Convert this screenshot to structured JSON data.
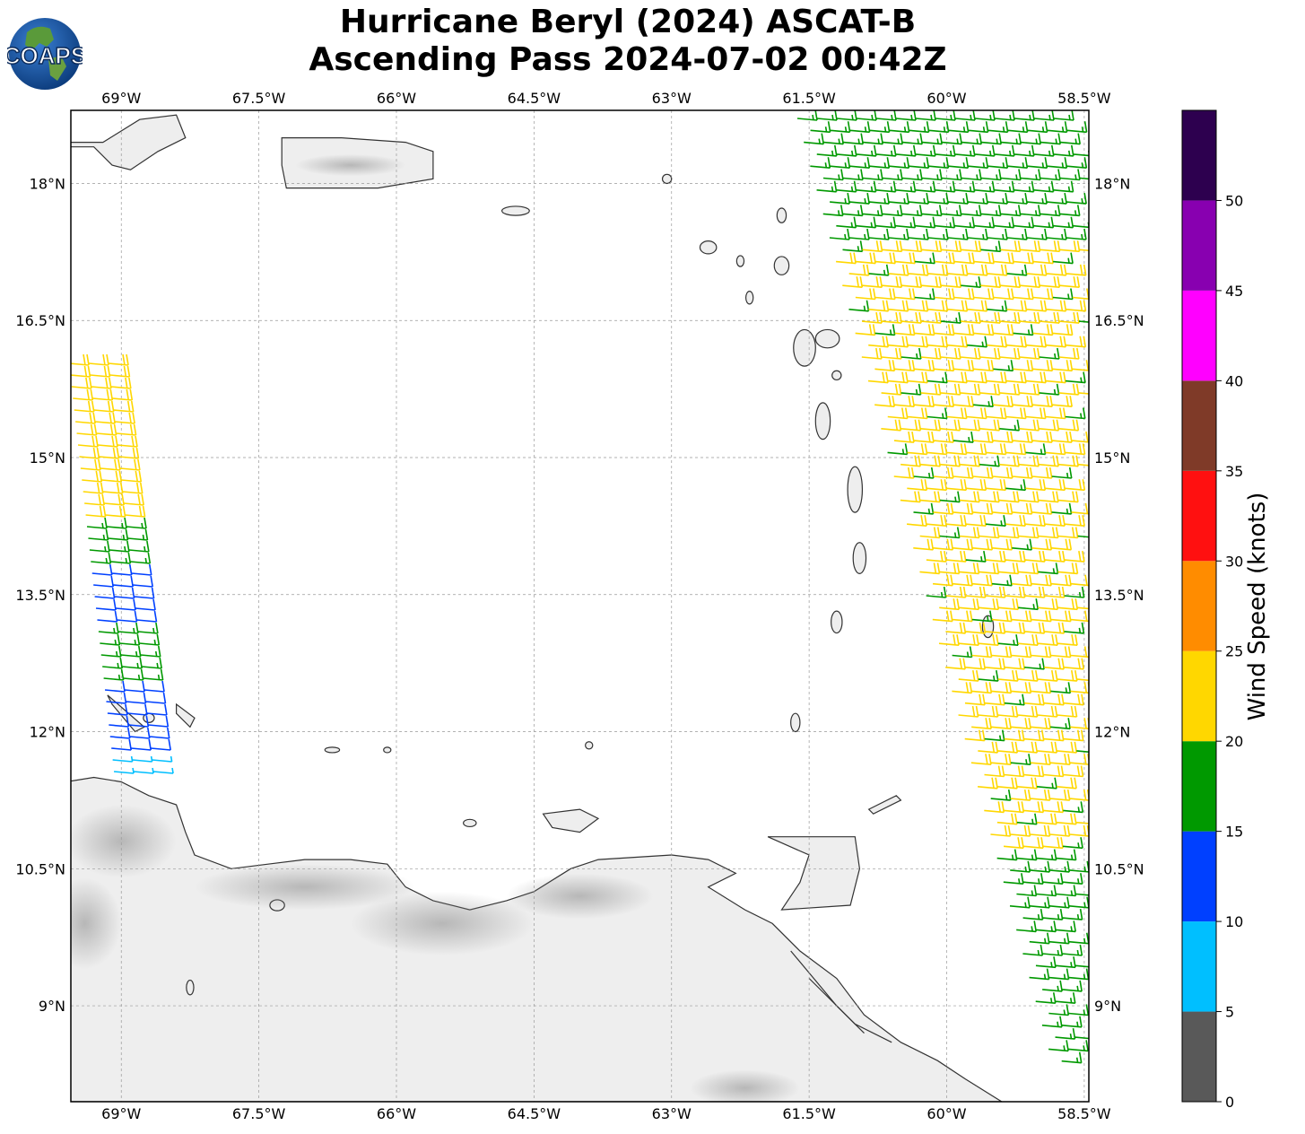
{
  "title": {
    "line1": "Hurricane Beryl (2024) ASCAT-B",
    "line2": "Ascending Pass 2024-07-02 00:42Z"
  },
  "logo": {
    "text": "COAPS",
    "icon": "globe-logo-icon"
  },
  "map": {
    "lon_range": [
      -69.55,
      -58.45
    ],
    "lat_range": [
      7.95,
      18.8
    ],
    "lon_ticks": [
      -69,
      -67.5,
      -66,
      -64.5,
      -63,
      -61.5,
      -60,
      -58.5
    ],
    "lon_labels": [
      "69°W",
      "67.5°W",
      "66°W",
      "64.5°W",
      "63°W",
      "61.5°W",
      "60°W",
      "58.5°W"
    ],
    "lat_ticks": [
      18,
      16.5,
      15,
      13.5,
      12,
      10.5,
      9
    ],
    "lat_labels": [
      "18°N",
      "16.5°N",
      "15°N",
      "13.5°N",
      "12°N",
      "10.5°N",
      "9°N"
    ],
    "gridlines": true,
    "land_color": "#eeeeee",
    "coast_color": "#333333"
  },
  "colorbar": {
    "label": "Wind Speed (knots)",
    "tick_values": [
      0,
      5,
      10,
      15,
      20,
      25,
      30,
      35,
      40,
      45,
      50
    ],
    "tick_labels": [
      "0",
      "5",
      "10",
      "15",
      "20",
      "25",
      "30",
      "35",
      "40",
      "45",
      "50"
    ],
    "colors": [
      "#595959",
      "#00bfff",
      "#0040ff",
      "#009900",
      "#ffd700",
      "#ff8c00",
      "#ff1010",
      "#7f3a28",
      "#ff00ff",
      "#8800b0",
      "#2d004f"
    ],
    "max": 55
  }
}
